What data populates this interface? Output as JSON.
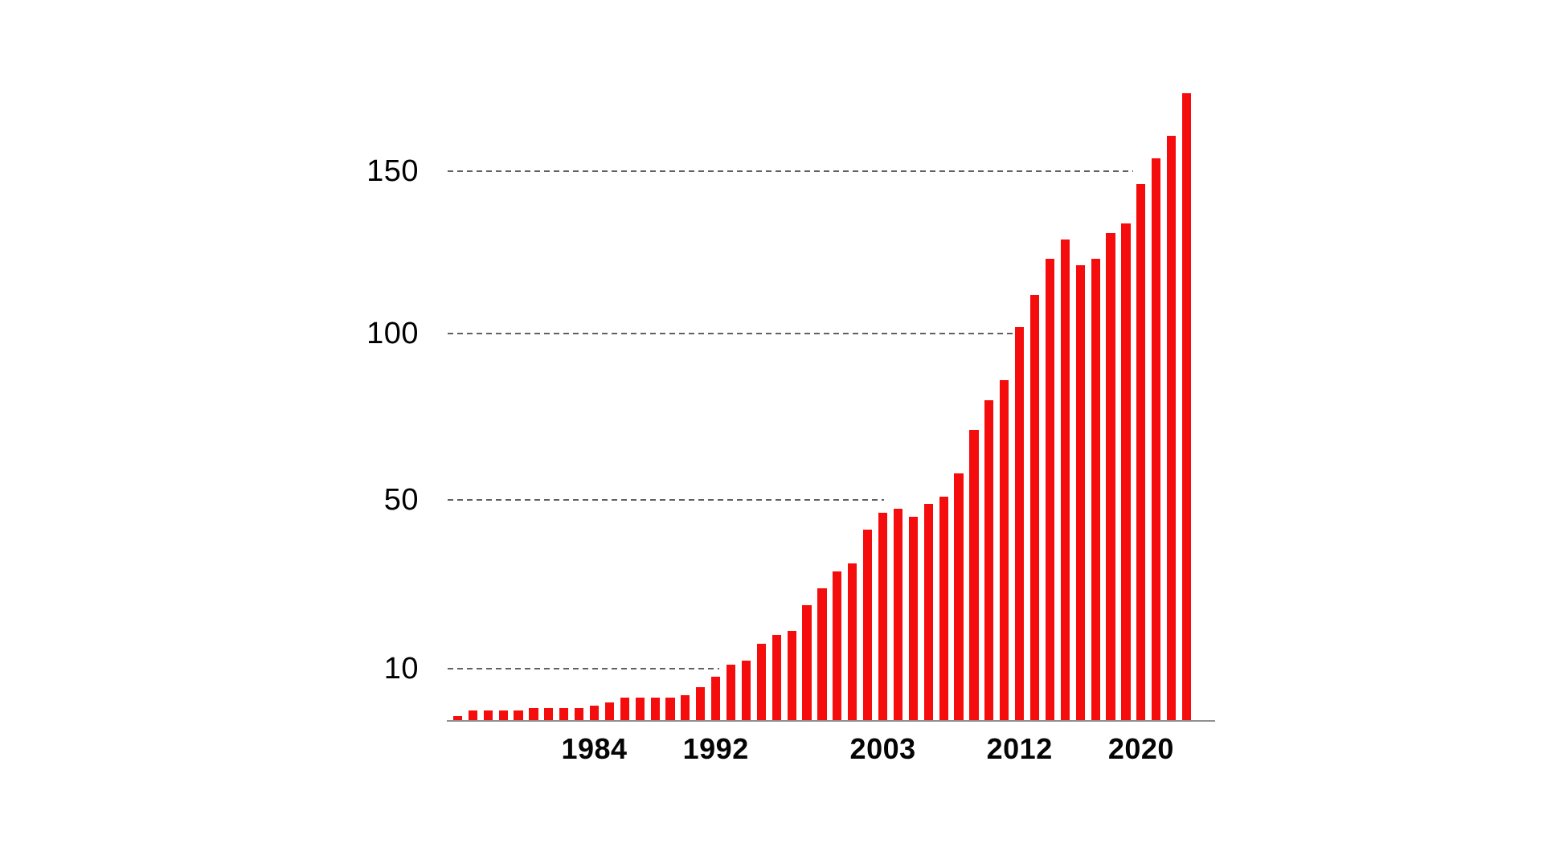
{
  "chart_data": {
    "type": "bar",
    "title": "",
    "xlabel": "",
    "ylabel": "",
    "legend": "none",
    "grid": "horizontal dashed gridlines, drawn from left up to the bars that reach each level",
    "x": [
      1975,
      1976,
      1977,
      1978,
      1979,
      1980,
      1981,
      1982,
      1983,
      1984,
      1985,
      1986,
      1987,
      1988,
      1989,
      1990,
      1991,
      1992,
      1993,
      1994,
      1995,
      1996,
      1997,
      1998,
      1999,
      2000,
      2001,
      2002,
      2003,
      2004,
      2005,
      2006,
      2007,
      2008,
      2009,
      2010,
      2011,
      2012,
      2013,
      2014,
      2015,
      2016,
      2017,
      2018,
      2019,
      2020,
      2021,
      2022,
      2023
    ],
    "values": [
      1,
      2,
      2,
      2,
      2,
      2.5,
      2.5,
      2.5,
      2.5,
      3,
      3.5,
      4.5,
      4.5,
      4.5,
      4.5,
      5,
      6.5,
      8.5,
      11,
      12,
      16,
      18,
      19,
      25,
      29,
      33,
      35,
      43,
      47,
      48,
      46,
      49,
      51,
      58,
      71,
      80,
      86,
      102,
      112,
      123,
      129,
      121,
      123,
      131,
      134,
      146,
      154,
      161,
      174
    ],
    "y_ticks": [
      10,
      50,
      100,
      150
    ],
    "x_ticks": [
      1984,
      1992,
      2003,
      2012,
      2020
    ],
    "ylim": [
      0,
      180
    ],
    "y_scale": "nonlinear (compressed toward higher values; tick rows 10/50/100/150 nearly evenly spaced)",
    "gridline_extent_frac": {
      "10": 0.354,
      "50": 0.569,
      "100": 0.738,
      "150": 0.893
    },
    "bar_color": "#f50d0d"
  },
  "colors": {
    "background": "#ffffff",
    "bar": "#f50d0d",
    "axis_line": "#8f8f8f",
    "gridline": "#616161",
    "tick_text": "#000000"
  }
}
